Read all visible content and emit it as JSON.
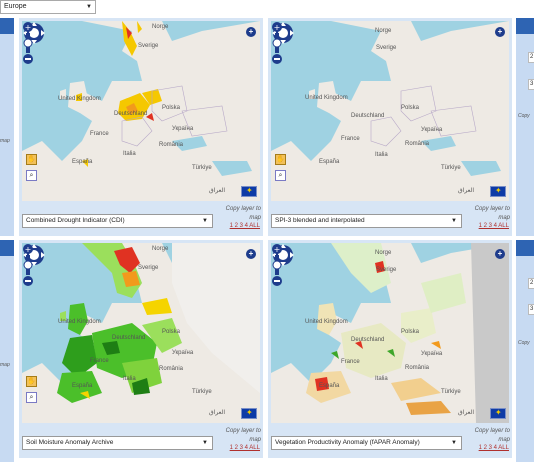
{
  "region_select": {
    "value": "Europe"
  },
  "panels": [
    {
      "layer": "Combined Drought Indicator (CDI)"
    },
    {
      "layer": "SPI-3 blended and interpolated"
    },
    {
      "layer": "Soil Moisture Anomaly Archive"
    },
    {
      "layer": "Vegetation Productivity Anomaly (fAPAR Anomaly)"
    }
  ],
  "copy_layer_text": "Copy layer to map",
  "map_links": "1 2 3 4 ALL",
  "place_labels": {
    "norge": "Norge",
    "sverige": "Sverige",
    "uk": "United Kingdom",
    "deutschland": "Deutschland",
    "france": "France",
    "espana": "España",
    "italia": "Italia",
    "polska": "Polska",
    "ukraina": "Україна",
    "turkiye": "Türkiye",
    "romania": "România",
    "iraq": "العراق"
  },
  "side_left": {
    "text": "map"
  },
  "side_right": {
    "text": "Copy",
    "box_labels": [
      "2",
      "3",
      "2",
      "3"
    ]
  },
  "icons": {
    "pan": "pan-control-icon",
    "zoom_in": "zoom-in-icon",
    "zoom_out": "zoom-out-icon",
    "plus": "add-layer-icon",
    "hand": "hand-tool-icon",
    "search": "zoom-search-icon",
    "flag": "eu-flag-icon"
  }
}
